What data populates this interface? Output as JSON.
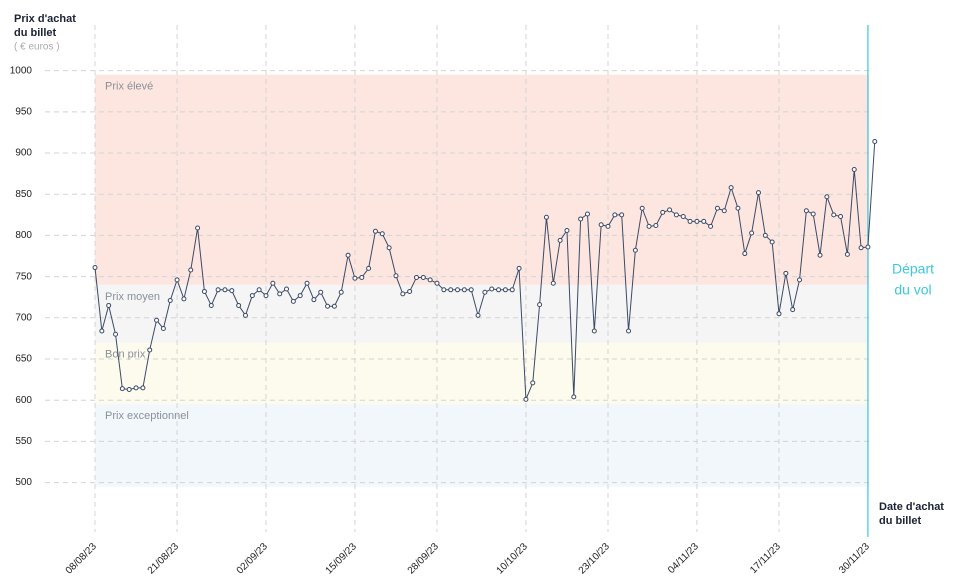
{
  "chart_data": {
    "type": "line",
    "y_label": [
      "Prix d'achat",
      "du billet"
    ],
    "y_unit": "( € euros )",
    "x_label": [
      "Date d'achat",
      "du billet"
    ],
    "ylim": [
      440,
      1070
    ],
    "yticks": [
      500,
      550,
      600,
      650,
      700,
      750,
      800,
      850,
      900,
      950,
      1000
    ],
    "grid": true,
    "categories": [
      "08/08/23",
      null,
      null,
      null,
      null,
      null,
      null,
      null,
      null,
      null,
      null,
      null,
      "21/08/23",
      null,
      null,
      null,
      null,
      null,
      null,
      null,
      null,
      null,
      null,
      null,
      null,
      "02/09/23",
      null,
      null,
      null,
      null,
      null,
      null,
      null,
      null,
      null,
      null,
      null,
      null,
      "15/09/23",
      null,
      null,
      null,
      null,
      null,
      null,
      null,
      null,
      null,
      null,
      null,
      "28/09/23",
      null,
      null,
      null,
      null,
      null,
      null,
      null,
      null,
      null,
      null,
      null,
      null,
      "10/10/23",
      null,
      null,
      null,
      null,
      null,
      null,
      null,
      null,
      null,
      null,
      null,
      "23/10/23",
      null,
      null,
      null,
      null,
      null,
      null,
      null,
      null,
      null,
      null,
      null,
      null,
      "04/11/23",
      null,
      null,
      null,
      null,
      null,
      null,
      null,
      null,
      null,
      null,
      null,
      "17/11/23",
      null,
      null,
      null,
      null,
      null,
      null,
      null,
      null,
      null,
      null,
      null,
      null,
      "30/11/23",
      null
    ],
    "series": [
      {
        "color": "#3b4a66",
        "values": [
          761,
          684,
          715,
          680,
          614,
          613,
          615,
          615,
          661,
          697,
          687,
          721,
          746,
          723,
          758,
          809,
          732,
          715,
          734,
          734,
          733,
          715,
          703,
          727,
          734,
          727,
          742,
          729,
          735,
          720,
          727,
          742,
          722,
          731,
          714,
          714,
          731,
          776,
          748,
          749,
          760,
          805,
          802,
          785,
          751,
          729,
          732,
          749,
          749,
          746,
          742,
          734,
          734,
          734,
          734,
          734,
          703,
          731,
          735,
          734,
          734,
          734,
          760,
          601,
          621,
          716,
          822,
          742,
          794,
          806,
          604,
          820,
          826,
          684,
          813,
          811,
          825,
          825,
          684,
          782,
          833,
          811,
          812,
          828,
          831,
          825,
          823,
          817,
          817,
          817,
          811,
          833,
          830,
          858,
          833,
          778,
          803,
          852,
          800,
          792,
          705,
          754,
          710,
          746,
          830,
          826,
          776,
          847,
          825,
          823,
          777,
          880,
          785,
          786,
          914
        ]
      }
    ],
    "bands": [
      {
        "label": "Prix élevé",
        "range": [
          740,
          995
        ],
        "color": "#fde6e0"
      },
      {
        "label": "Prix moyen",
        "range": [
          670,
          740
        ],
        "color": "#f5f5f6"
      },
      {
        "label": "Bon prix",
        "range": [
          595,
          670
        ],
        "color": "#fcfbee"
      },
      {
        "label": "Prix exceptionnel",
        "range": [
          495,
          595
        ],
        "color": "#f1f7fb"
      }
    ],
    "annotation": {
      "text": [
        "Départ",
        "du vol"
      ],
      "at": "30/11/23",
      "color": "#3cc8dc"
    }
  }
}
